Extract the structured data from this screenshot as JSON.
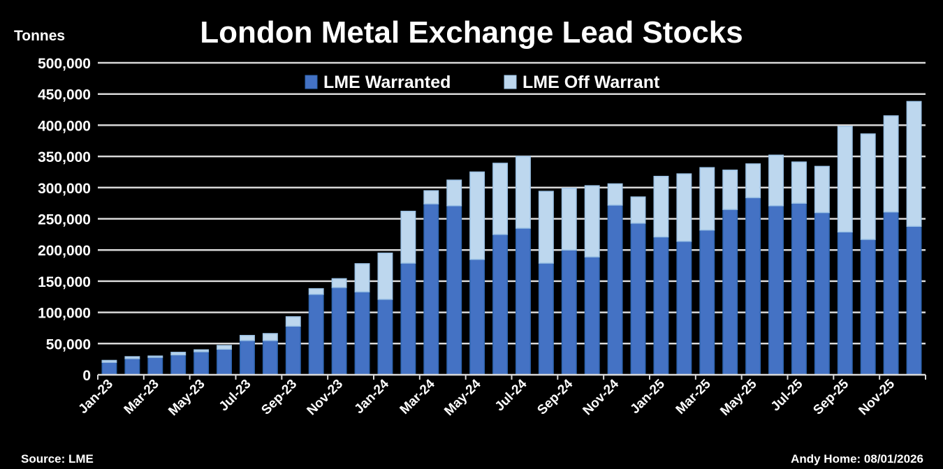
{
  "chart_data": {
    "type": "bar",
    "stacked": true,
    "title": "London Metal Exchange Lead Stocks",
    "ylabel": "Tonnes",
    "ylim": [
      0,
      500000
    ],
    "yticks": [
      0,
      50000,
      100000,
      150000,
      200000,
      250000,
      300000,
      350000,
      400000,
      450000,
      500000
    ],
    "grid": true,
    "legend": "top-center",
    "categories": [
      "Jan-23",
      "Feb-23",
      "Mar-23",
      "Apr-23",
      "May-23",
      "Jun-23",
      "Jul-23",
      "Aug-23",
      "Sep-23",
      "Oct-23",
      "Nov-23",
      "Dec-23",
      "Jan-24",
      "Feb-24",
      "Mar-24",
      "Apr-24",
      "May-24",
      "Jun-24",
      "Jul-24",
      "Aug-24",
      "Sep-24",
      "Oct-24",
      "Nov-24",
      "Dec-24",
      "Jan-25",
      "Feb-25",
      "Mar-25",
      "Apr-25",
      "May-25",
      "Jun-25",
      "Jul-25",
      "Aug-25",
      "Sep-25",
      "Oct-25",
      "Nov-25",
      "Dec-25"
    ],
    "shown_tick_labels": [
      "Jan-23",
      "Mar-23",
      "May-23",
      "Jul-23",
      "Sep-23",
      "Nov-23",
      "Jan-24",
      "Mar-24",
      "May-24",
      "Jul-24",
      "Sep-24",
      "Nov-24",
      "Jan-25",
      "Mar-25",
      "May-25",
      "Jul-25",
      "Sep-25",
      "Nov-25"
    ],
    "series": [
      {
        "name": "LME Warranted",
        "color": "#4472C4",
        "values": [
          20000,
          26000,
          28000,
          32000,
          37000,
          41000,
          55000,
          55000,
          78000,
          129000,
          140000,
          133000,
          121000,
          179000,
          274000,
          271000,
          185000,
          225000,
          235000,
          179000,
          200000,
          189000,
          272000,
          243000,
          221000,
          214000,
          232000,
          265000,
          284000,
          271000,
          275000,
          260000,
          229000,
          217000,
          261000,
          238000
        ]
      },
      {
        "name": "LME Off Warrant",
        "color": "#BDD7EE",
        "values": [
          3000,
          3000,
          2000,
          4000,
          3000,
          6000,
          8000,
          11000,
          15000,
          9000,
          14000,
          45000,
          74000,
          83000,
          21000,
          41000,
          140000,
          114000,
          115000,
          115000,
          99000,
          114000,
          34000,
          42000,
          97000,
          108000,
          100000,
          63000,
          54000,
          81000,
          66000,
          74000,
          169000,
          169000,
          154000,
          200000
        ]
      }
    ]
  },
  "footer": {
    "source": "Source: LME",
    "credit": "Andy Home: 08/01/2026"
  }
}
